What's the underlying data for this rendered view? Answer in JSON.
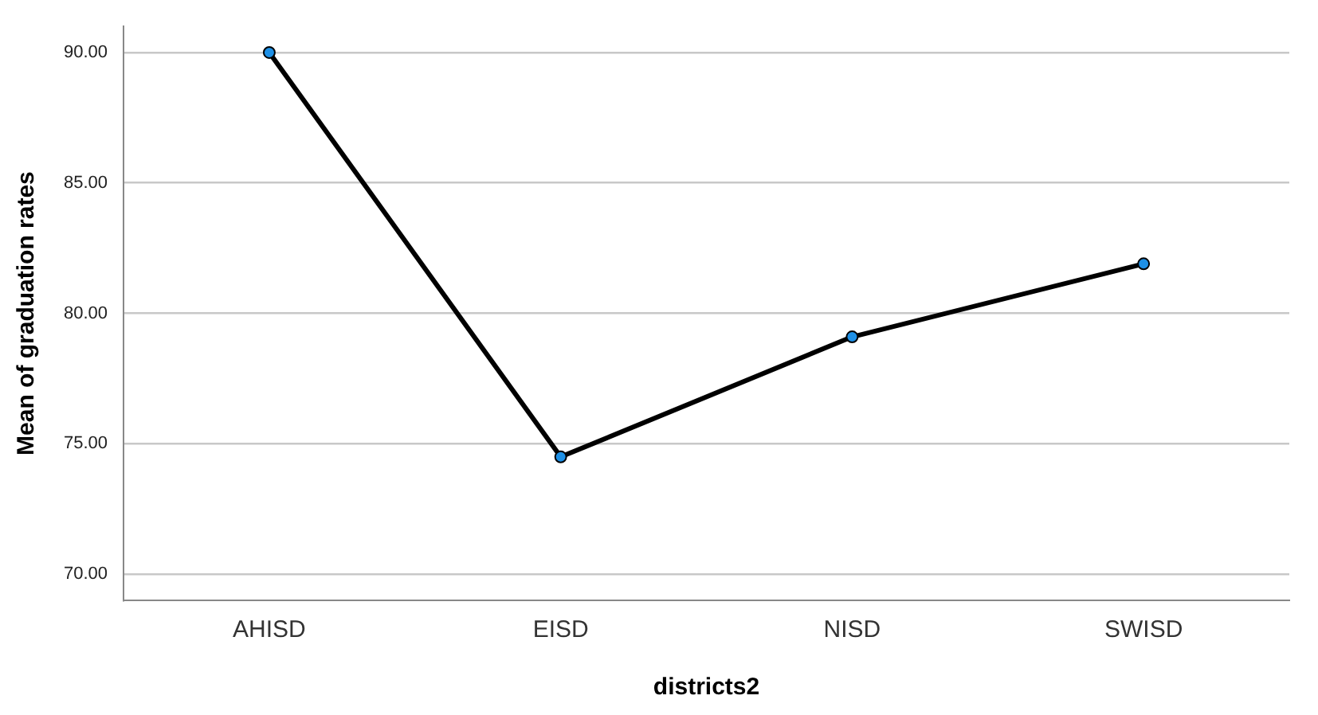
{
  "chart_data": {
    "type": "line",
    "xlabel": "districts2",
    "ylabel": "Mean of graduation rates",
    "categories": [
      "AHISD",
      "EISD",
      "NISD",
      "SWISD"
    ],
    "series": [
      {
        "color": "#000000",
        "values": [
          90.0,
          74.5,
          79.1,
          81.9
        ]
      }
    ],
    "ylim": [
      69,
      91
    ],
    "yticks": [
      {
        "value": 70,
        "label": "70.00"
      },
      {
        "value": 75,
        "label": "75.00"
      },
      {
        "value": 80,
        "label": "80.00"
      },
      {
        "value": 85,
        "label": "85.00"
      },
      {
        "value": 90,
        "label": "90.00"
      }
    ],
    "grid": "y",
    "marker": "circle",
    "legend": false
  }
}
